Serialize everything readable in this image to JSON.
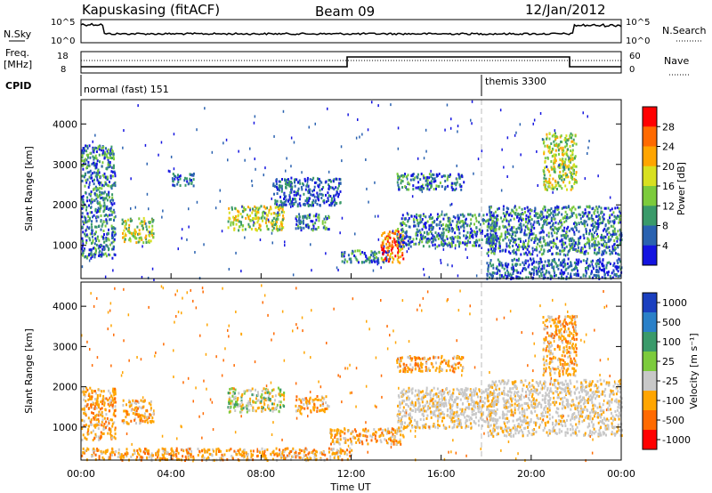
{
  "header": {
    "station": "Kapuskasing (fitACF)",
    "beam": "Beam 09",
    "date": "12/Jan/2012"
  },
  "status_panels": {
    "nsky_label": "N.Sky",
    "nsky_ticks": [
      "10^5",
      "10^0"
    ],
    "nsearch_label": "N.Search",
    "freq_label_line1": "Freq.",
    "freq_label_line2": "[MHz]",
    "freq_ticks": [
      "18",
      "8"
    ],
    "nave_label": "Nave",
    "nave_ticks": [
      "60",
      "0"
    ],
    "cpid_label": "CPID",
    "cpid_segments": [
      {
        "label": "normal (fast) 151",
        "start_hour": 0
      },
      {
        "label": "themis 3300",
        "start_hour": 18
      }
    ]
  },
  "x_axis": {
    "label": "Time UT",
    "ticks": [
      "00:00",
      "04:00",
      "08:00",
      "12:00",
      "16:00",
      "20:00",
      "00:00"
    ]
  },
  "power_panel": {
    "ylabel": "Slant Range [km]",
    "yticks": [
      "1000",
      "2000",
      "3000",
      "4000"
    ],
    "colorbar_label": "Power [dB]",
    "colorbar_ticks": [
      "28",
      "24",
      "20",
      "16",
      "12",
      "8",
      "4"
    ],
    "colorbar_colors": [
      "#ff0000",
      "#ff6a00",
      "#ffa500",
      "#d8e020",
      "#7ccb3c",
      "#3a9a6a",
      "#2a62b0",
      "#1414e0"
    ]
  },
  "velocity_panel": {
    "ylabel": "Slant Range [km]",
    "yticks": [
      "1000",
      "2000",
      "3000",
      "4000"
    ],
    "colorbar_label": "Velocity [m s⁻¹]",
    "colorbar_ticks": [
      "1000",
      "500",
      "100",
      "25",
      "-25",
      "-100",
      "-500",
      "-1000"
    ],
    "colorbar_colors": [
      "#1a3fbf",
      "#2a80c8",
      "#3a9a6a",
      "#7ccb3c",
      "#c8c8c8",
      "#ffa500",
      "#ff6a00",
      "#ff0000"
    ]
  },
  "chart_data": {
    "type": "heatmap",
    "x_range_hours": [
      0,
      24
    ],
    "y_range_km": [
      180,
      4600
    ],
    "power_regions": [
      {
        "t0": 0.0,
        "t1": 1.5,
        "r0": 700,
        "r1": 3500,
        "level": "mid"
      },
      {
        "t0": 1.8,
        "t1": 3.2,
        "r0": 1100,
        "r1": 1700,
        "level": "high"
      },
      {
        "t0": 4.0,
        "t1": 5.0,
        "r0": 2500,
        "r1": 2800,
        "level": "low"
      },
      {
        "t0": 6.5,
        "t1": 9.0,
        "r0": 1400,
        "r1": 2000,
        "level": "high"
      },
      {
        "t0": 8.5,
        "t1": 11.5,
        "r0": 2000,
        "r1": 2700,
        "level": "low"
      },
      {
        "t0": 9.5,
        "t1": 11.0,
        "r0": 1400,
        "r1": 1800,
        "level": "mid"
      },
      {
        "t0": 11.5,
        "t1": 13.8,
        "r0": 600,
        "r1": 900,
        "level": "mid"
      },
      {
        "t0": 13.3,
        "t1": 14.3,
        "r0": 600,
        "r1": 1400,
        "level": "peak"
      },
      {
        "t0": 14.0,
        "t1": 18.5,
        "r0": 1000,
        "r1": 1800,
        "level": "mid"
      },
      {
        "t0": 14.0,
        "t1": 17.0,
        "r0": 2400,
        "r1": 2800,
        "level": "mid"
      },
      {
        "t0": 18.0,
        "t1": 24.0,
        "r0": 800,
        "r1": 2000,
        "level": "mid"
      },
      {
        "t0": 20.5,
        "t1": 22.0,
        "r0": 2400,
        "r1": 3800,
        "level": "high"
      },
      {
        "t0": 18.0,
        "t1": 24.0,
        "r0": 200,
        "r1": 700,
        "level": "low"
      }
    ],
    "velocity_regions": [
      {
        "t0": 0.0,
        "t1": 1.5,
        "r0": 700,
        "r1": 2000,
        "v": "neg"
      },
      {
        "t0": 1.8,
        "t1": 3.2,
        "r0": 1100,
        "r1": 1700,
        "v": "neg"
      },
      {
        "t0": 6.5,
        "t1": 9.0,
        "r0": 1400,
        "r1": 2000,
        "v": "mix"
      },
      {
        "t0": 9.5,
        "t1": 11.0,
        "r0": 1400,
        "r1": 1800,
        "v": "neg"
      },
      {
        "t0": 11.0,
        "t1": 14.3,
        "r0": 600,
        "r1": 1000,
        "v": "neg"
      },
      {
        "t0": 14.0,
        "t1": 18.5,
        "r0": 1000,
        "r1": 2000,
        "v": "zero"
      },
      {
        "t0": 14.0,
        "t1": 17.0,
        "r0": 2400,
        "r1": 2800,
        "v": "neg"
      },
      {
        "t0": 18.0,
        "t1": 24.0,
        "r0": 800,
        "r1": 2200,
        "v": "zero"
      },
      {
        "t0": 20.5,
        "t1": 22.0,
        "r0": 2300,
        "r1": 3800,
        "v": "neg"
      },
      {
        "t0": 0.0,
        "t1": 12.0,
        "r0": 200,
        "r1": 500,
        "v": "neg"
      }
    ]
  }
}
